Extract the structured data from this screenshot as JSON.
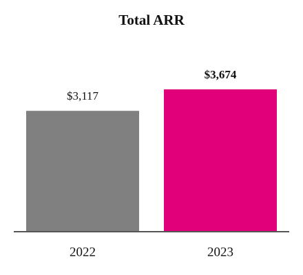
{
  "chart_data": {
    "type": "bar",
    "title": "Total ARR",
    "categories": [
      "2022",
      "2023"
    ],
    "values": [
      3117,
      3674
    ],
    "value_labels": [
      "$3,117",
      "$3,674"
    ],
    "value_label_bold": [
      false,
      true
    ],
    "colors": [
      "#808080",
      "#e2007a"
    ]
  }
}
